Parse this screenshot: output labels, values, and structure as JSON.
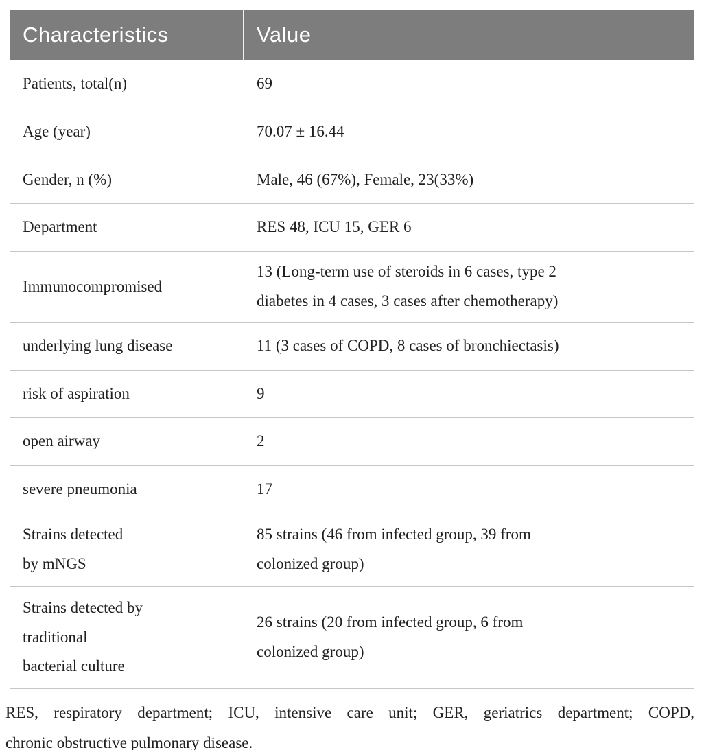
{
  "table": {
    "header": {
      "characteristics": "Characteristics",
      "value": "Value"
    },
    "rows": [
      {
        "label": "Patients, total(n)",
        "value": "69"
      },
      {
        "label": "Age (year)",
        "value": "70.07 ± 16.44"
      },
      {
        "label": "Gender, n (%)",
        "value": "Male, 46 (67%), Female, 23(33%)"
      },
      {
        "label": "Department",
        "value": "RES 48, ICU 15, GER 6"
      },
      {
        "label": "Immunocompromised",
        "value": "13 (Long-term use of steroids in 6 cases, type 2\ndiabetes in 4 cases, 3 cases after chemotherapy)"
      },
      {
        "label": "underlying lung disease",
        "value": "11 (3 cases of COPD, 8 cases of bronchiectasis)"
      },
      {
        "label": "risk of aspiration",
        "value": "9"
      },
      {
        "label": "open airway",
        "value": "2"
      },
      {
        "label": "severe pneumonia",
        "value": "17"
      },
      {
        "label": "Strains detected\nby mNGS",
        "value": "85 strains (46 from infected group, 39 from\ncolonized group)"
      },
      {
        "label": "Strains detected by\ntraditional\nbacterial culture",
        "value": "26 strains (20 from infected group, 6 from\ncolonized group)"
      }
    ]
  },
  "footnote": {
    "lines": [
      "RES, respiratory department; ICU, intensive care unit; GER, geriatrics department; COPD,",
      "chronic obstructive pulmonary disease."
    ]
  },
  "colors": {
    "header_bg": "#7d7d7d",
    "header_text": "#ffffff",
    "header_divider": "#f2f2f2",
    "border": "#c6c6c6",
    "text": "#212121",
    "background": "#ffffff"
  }
}
